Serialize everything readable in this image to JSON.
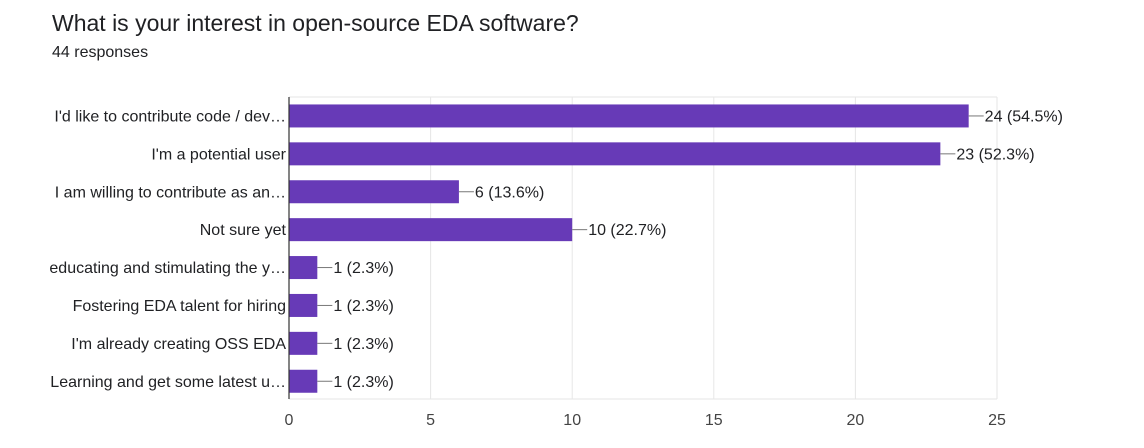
{
  "header": {
    "title": "What is your interest in open-source EDA software?",
    "subtitle": "44 responses"
  },
  "chart_data": {
    "type": "bar",
    "orientation": "horizontal",
    "categories": [
      "I'd like to contribute code / dev…",
      "I'm a potential user",
      "I am willing to contribute as an…",
      "Not sure yet",
      "educating and stimulating the y…",
      "Fostering EDA talent for hiring",
      "I'm already creating OSS EDA",
      "Learning and get some latest u…"
    ],
    "values": [
      24,
      23,
      6,
      10,
      1,
      1,
      1,
      1
    ],
    "data_labels": [
      "24 (54.5%)",
      "23 (52.3%)",
      "6 (13.6%)",
      "10 (22.7%)",
      "1 (2.3%)",
      "1 (2.3%)",
      "1 (2.3%)",
      "1 (2.3%)"
    ],
    "xlim": [
      0,
      25
    ],
    "xticks": [
      0,
      5,
      10,
      15,
      20,
      25
    ],
    "grid": true,
    "bar_color": "#673ab7",
    "title": "What is your interest in open-source EDA software?",
    "xlabel": "",
    "ylabel": ""
  }
}
